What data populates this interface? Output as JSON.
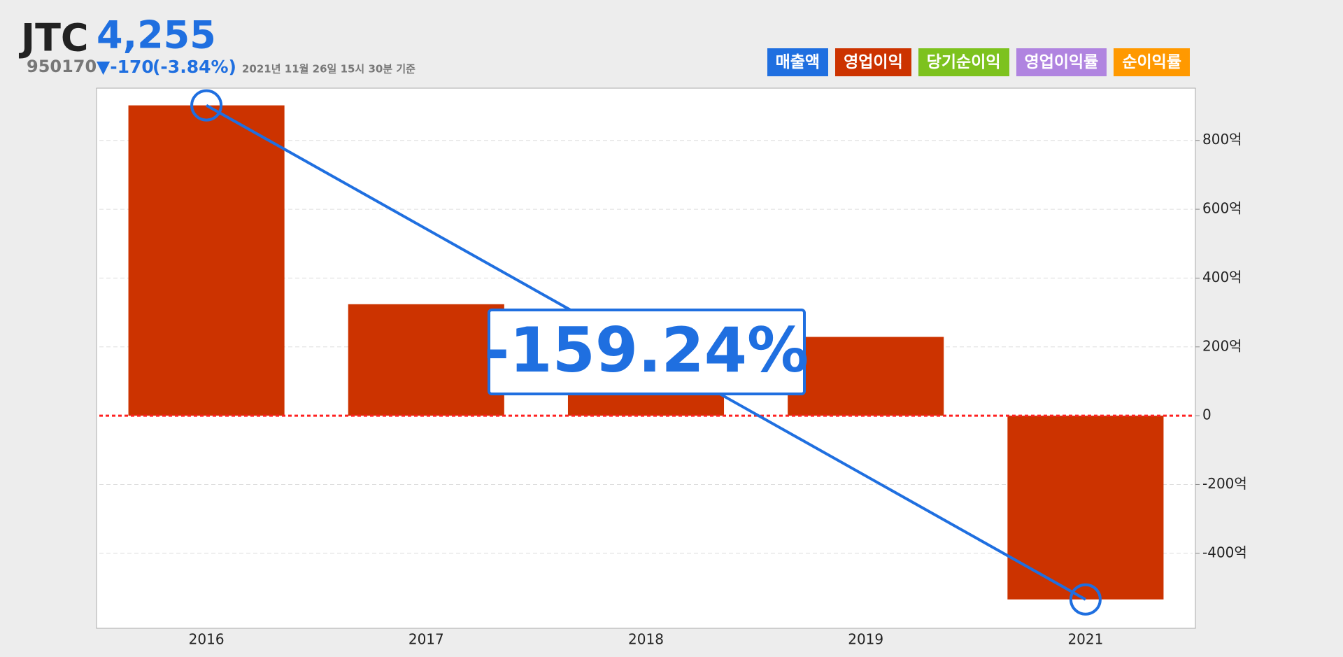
{
  "header": {
    "name": "JTC",
    "price": "4,255",
    "code": "950170",
    "change": "▼-170",
    "change_pct": "(-3.84%)",
    "timestamp": "2021년 11월 26일 15시 30분 기준"
  },
  "legend_buttons": [
    {
      "label": "매출액",
      "color": "#1f6fe0"
    },
    {
      "label": "영업이익",
      "color": "#cc3300"
    },
    {
      "label": "당기순이익",
      "color": "#7dc21e"
    },
    {
      "label": "영업이익률",
      "color": "#b084e0"
    },
    {
      "label": "순이익률",
      "color": "#ff9900"
    }
  ],
  "chart_data": {
    "type": "bar",
    "categories": [
      "2016",
      "2017",
      "2018",
      "2019",
      "2021"
    ],
    "series": [
      {
        "name": "영업이익",
        "color": "#cc3300",
        "values": [
          902,
          324,
          306,
          229,
          -534
        ]
      }
    ],
    "ylim": [
      -618,
      952
    ],
    "yticks": [
      {
        "value": -400,
        "label": "-400억"
      },
      {
        "value": -200,
        "label": "-200억"
      },
      0,
      {
        "value": 200,
        "label": "200억"
      },
      {
        "value": 400,
        "label": "400억"
      },
      {
        "value": 600,
        "label": "600억"
      },
      {
        "value": 800,
        "label": "800억"
      }
    ],
    "grid": true,
    "annotation": {
      "text": "-159.24%",
      "color": "#1f6fe0",
      "from": 0,
      "to": 4
    }
  }
}
